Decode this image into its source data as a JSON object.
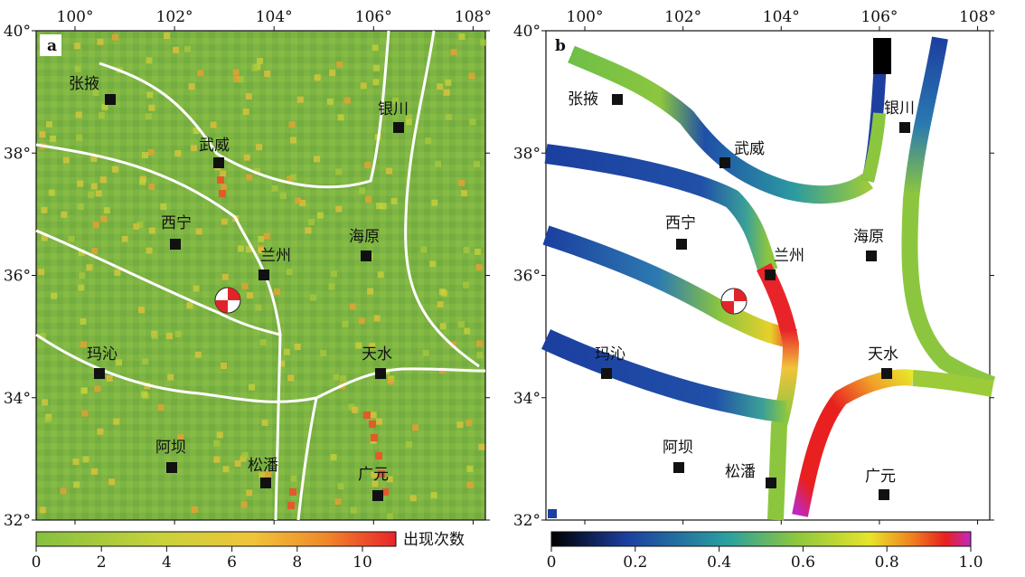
{
  "panel_a": {
    "label": "a",
    "x_ticks": [
      "100°",
      "102°",
      "104°",
      "106°",
      "108°"
    ],
    "y_ticks": [
      "40°",
      "38°",
      "36°",
      "34°",
      "32°"
    ],
    "cities": [
      {
        "name": "张掖"
      },
      {
        "name": "武威"
      },
      {
        "name": "银川"
      },
      {
        "name": "西宁"
      },
      {
        "name": "兰州"
      },
      {
        "name": "海原"
      },
      {
        "name": "玛沁"
      },
      {
        "name": "天水"
      },
      {
        "name": "阿坝"
      },
      {
        "name": "松潘"
      },
      {
        "name": "广元"
      }
    ],
    "colorbar": {
      "ticks": [
        "0",
        "2",
        "4",
        "6",
        "8",
        "10"
      ],
      "label": "出现次数",
      "colors": [
        "#86c03f",
        "#c8d23a",
        "#f0c43a",
        "#f08a2a",
        "#e8242a"
      ]
    }
  },
  "panel_b": {
    "label": "b",
    "x_ticks": [
      "100°",
      "102°",
      "104°",
      "106°",
      "108°"
    ],
    "y_ticks": [
      "40°",
      "38°",
      "36°",
      "34°",
      "32°"
    ],
    "cities": [
      {
        "name": "张掖"
      },
      {
        "name": "武威"
      },
      {
        "name": "银川"
      },
      {
        "name": "西宁"
      },
      {
        "name": "兰州"
      },
      {
        "name": "海原"
      },
      {
        "name": "玛沁"
      },
      {
        "name": "天水"
      },
      {
        "name": "阿坝"
      },
      {
        "name": "松潘"
      },
      {
        "name": "广元"
      }
    ],
    "colorbar": {
      "ticks": [
        "0",
        "0.2",
        "0.4",
        "0.6",
        "0.8",
        "1.0"
      ],
      "colors": [
        "#000000",
        "#1c3fa0",
        "#2aa0a0",
        "#8bc63f",
        "#e8e42a",
        "#f08020",
        "#e82020",
        "#c028c0"
      ]
    }
  },
  "colors": {
    "field_green": "#7db443",
    "fault_line": "#ffffff",
    "city_marker": "#111111",
    "beachball_red": "#e0242a"
  }
}
